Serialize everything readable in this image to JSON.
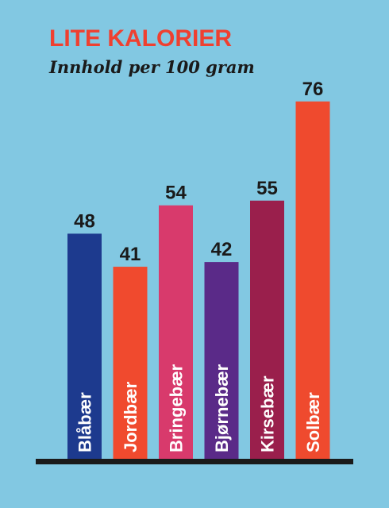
{
  "chart_data": {
    "type": "bar",
    "title": "LITE KALORIER",
    "subtitle": "Innhold per 100 gram",
    "categories": [
      "Blåbær",
      "Jordbær",
      "Bringebær",
      "Bjørnebær",
      "Kirsebær",
      "Solbær"
    ],
    "values": [
      48,
      41,
      54,
      42,
      55,
      76
    ],
    "colors": [
      "#1d3a8e",
      "#f04a2e",
      "#d83a6c",
      "#5a2a88",
      "#9a1f4c",
      "#ef4a2e"
    ]
  }
}
